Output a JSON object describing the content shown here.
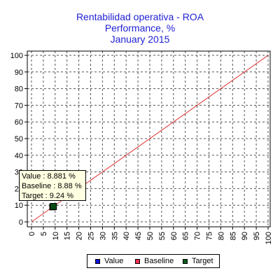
{
  "header": {
    "title": "Rentabilidad operativa - ROA",
    "subtitle": "Performance, %",
    "period": "January 2015"
  },
  "tooltip": {
    "value_line": "Value : 8.881 %",
    "baseline_line": "Baseline : 8.88 %",
    "target_line": "Target : 9.24 %"
  },
  "legend": {
    "items": [
      {
        "label": "Value",
        "color": "#1010e0"
      },
      {
        "label": "Baseline",
        "color": "#ff3050"
      },
      {
        "label": "Target",
        "color": "#0a5a1a"
      }
    ]
  },
  "chart_data": {
    "type": "scatter",
    "title": "Rentabilidad operativa - ROA",
    "subtitle": "Performance, % / January 2015",
    "xlim": [
      0,
      100
    ],
    "ylim": [
      0,
      100
    ],
    "x_ticks": [
      0,
      5,
      10,
      15,
      20,
      25,
      30,
      35,
      40,
      45,
      50,
      55,
      60,
      65,
      70,
      75,
      80,
      85,
      90,
      95,
      100
    ],
    "y_ticks": [
      0,
      10,
      20,
      30,
      40,
      50,
      60,
      70,
      80,
      90,
      100
    ],
    "grid": true,
    "diagonal_color": "#e03030",
    "series": [
      {
        "name": "Value",
        "x": [
          8.881
        ],
        "y": [
          8.881
        ]
      },
      {
        "name": "Baseline",
        "x": [
          8.88
        ],
        "y": [
          8.88
        ]
      },
      {
        "name": "Target",
        "x": [
          9.24
        ],
        "y": [
          9.24
        ]
      }
    ],
    "legend_position": "bottom"
  }
}
